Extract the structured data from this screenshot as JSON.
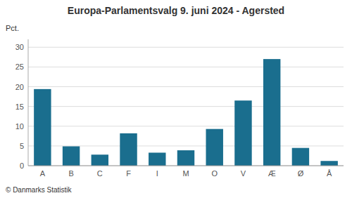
{
  "chart_data": {
    "type": "bar",
    "title": "Europa-Parlamentsvalg 9. juni 2024 - Agersted",
    "ylabel": "Pct.",
    "footer": "© Danmarks Statistik",
    "categories": [
      "A",
      "B",
      "C",
      "F",
      "I",
      "M",
      "O",
      "V",
      "Æ",
      "Ø",
      "Å"
    ],
    "values": [
      19.4,
      4.9,
      2.8,
      8.2,
      3.3,
      3.9,
      9.3,
      16.5,
      27.0,
      4.5,
      1.2
    ],
    "color": "#1a6e8e",
    "ylim": [
      0,
      32
    ],
    "yticks": [
      0,
      5,
      10,
      15,
      20,
      25,
      30
    ],
    "grid": true
  }
}
